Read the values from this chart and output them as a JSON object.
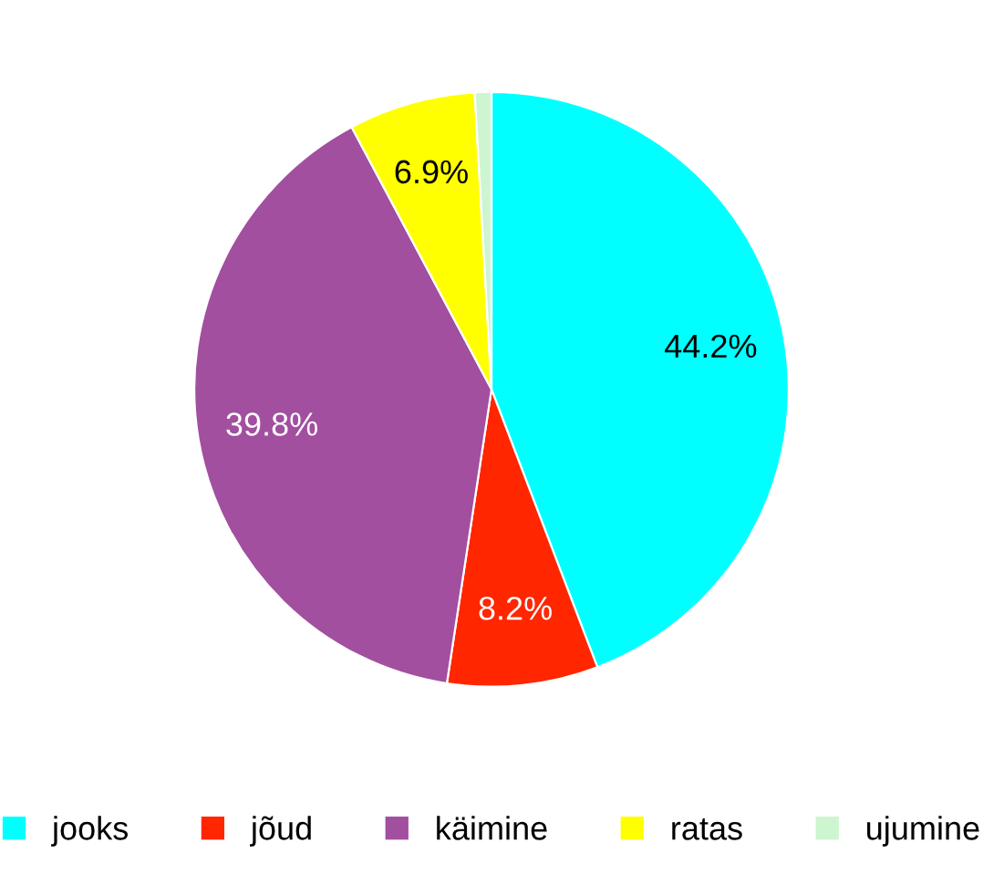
{
  "chart_data": {
    "type": "pie",
    "categories": [
      "jooks",
      "jõud",
      "käimine",
      "ratas",
      "ujumine"
    ],
    "values": [
      44.2,
      8.2,
      39.8,
      6.9,
      0.9
    ],
    "colors": [
      "#00ffff",
      "#ff2600",
      "#a24fa0",
      "#ffff00",
      "#ccf5d0"
    ],
    "value_labels": [
      "44.2%",
      "8.2%",
      "39.8%",
      "6.9%",
      null
    ],
    "legend": "bottom"
  }
}
